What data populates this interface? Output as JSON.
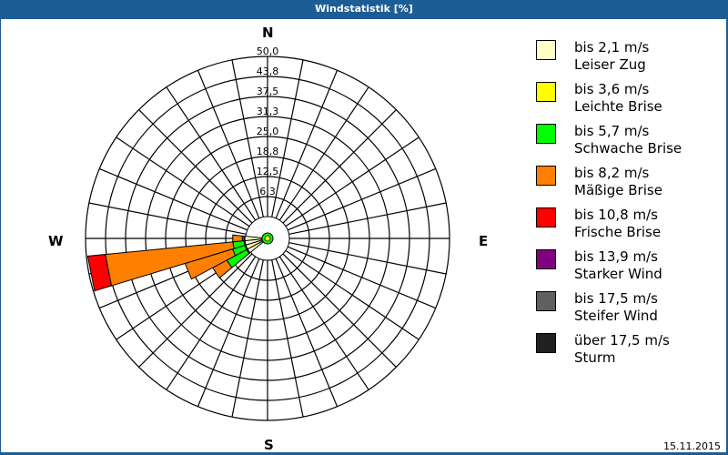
{
  "window": {
    "title": "Windstatistik [%]"
  },
  "date": "15.11.2015",
  "compass": {
    "n": "N",
    "e": "E",
    "s": "S",
    "w": "W"
  },
  "legend": [
    {
      "line1": "bis 2,1 m/s",
      "line2": "Leiser Zug",
      "color": "#ffffc8"
    },
    {
      "line1": "bis 3,6 m/s",
      "line2": "Leichte Brise",
      "color": "#ffff00"
    },
    {
      "line1": "bis 5,7 m/s",
      "line2": "Schwache Brise",
      "color": "#00ff00"
    },
    {
      "line1": "bis 8,2 m/s",
      "line2": "Mäßige Brise",
      "color": "#ff8000"
    },
    {
      "line1": "bis 10,8 m/s",
      "line2": "Frische Brise",
      "color": "#ff0000"
    },
    {
      "line1": "bis 13,9 m/s",
      "line2": "Starker Wind",
      "color": "#800080"
    },
    {
      "line1": "bis 17,5 m/s",
      "line2": "Steifer Wind",
      "color": "#606060"
    },
    {
      "line1": "über 17,5 m/s",
      "line2": "Sturm",
      "color": "#202020"
    }
  ],
  "chart_data": {
    "type": "polar-stacked-bar (wind rose)",
    "title": "Windstatistik [%]",
    "radial_axis": {
      "unit": "%",
      "range": [
        0,
        50
      ],
      "ticks": [
        "6,3",
        "12,5",
        "18,8",
        "25,0",
        "31,3",
        "37,5",
        "43,8",
        "50,0"
      ]
    },
    "sectors": 32,
    "directions_deg": [
      236.25,
      247.5,
      258.75,
      270
    ],
    "series": [
      {
        "name": "bis 2,1 m/s",
        "values": [
          0.3,
          0.3,
          0.3,
          0.3
        ]
      },
      {
        "name": "bis 3,6 m/s",
        "values": [
          0.3,
          0.3,
          0.3,
          0.3
        ]
      },
      {
        "name": "bis 5,7 m/s",
        "values": [
          7.0,
          4.0,
          3.5,
          0.5
        ]
      },
      {
        "name": "bis 8,2 m/s",
        "values": [
          5.0,
          15.5,
          40.0,
          3.0
        ]
      },
      {
        "name": "bis 10,8 m/s",
        "values": [
          0,
          0,
          5.5,
          0
        ]
      },
      {
        "name": "bis 13,9 m/s",
        "values": [
          0,
          0,
          0,
          0
        ]
      },
      {
        "name": "bis 17,5 m/s",
        "values": [
          0,
          0,
          0,
          0
        ]
      },
      {
        "name": "über 17,5 m/s",
        "values": [
          0,
          0,
          0,
          0
        ]
      }
    ],
    "date": "15.11.2015"
  }
}
